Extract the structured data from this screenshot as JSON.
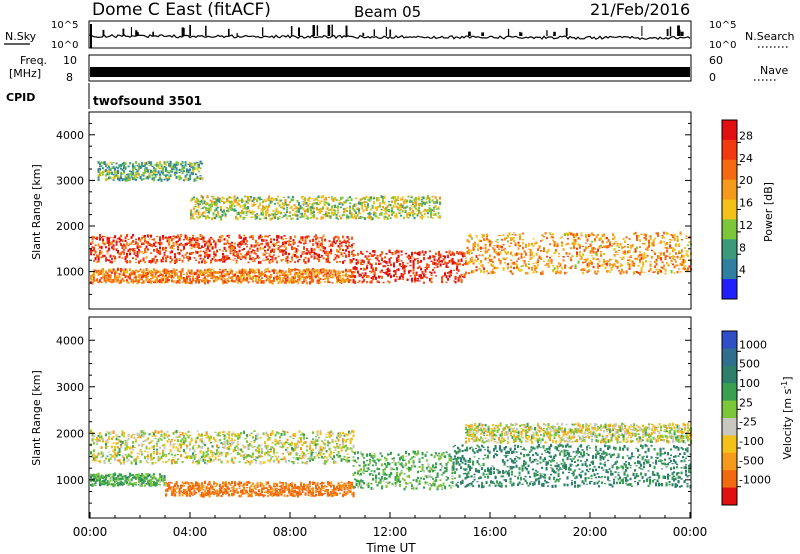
{
  "header": {
    "station": "Dome C East (fitACF)",
    "beam": "Beam 05",
    "date": "21/Feb/2016"
  },
  "top_panels": {
    "nsky_label": "N.Sky",
    "nsearch_label": "N.Search",
    "nsky_ticks": [
      "10^5",
      "10^0"
    ],
    "freq_label_line1": "Freq.",
    "freq_label_line2": "[MHz]",
    "freq_ticks": [
      "10",
      "8"
    ],
    "nave_label": "Nave",
    "nave_ticks": [
      "60",
      "0"
    ],
    "cpid_label": "CPID",
    "cpid_value": "twofsound 3501"
  },
  "colors": {
    "power_scale": [
      "#1f1fff",
      "#2e7fa0",
      "#3a9a7a",
      "#7cc63a",
      "#f2c21a",
      "#f59a1a",
      "#f56a10",
      "#f23a10",
      "#e01010"
    ],
    "velocity_scale": [
      "#2e4fc8",
      "#2f6e8c",
      "#2e7f6a",
      "#39a050",
      "#7cc63a",
      "#c8c8c0",
      "#f2c21a",
      "#f59a1a",
      "#f26a10",
      "#e01010"
    ]
  },
  "chart_data": [
    {
      "type": "heatmap",
      "title": "Power",
      "ylabel": "Slant Range [km]",
      "ylim": [
        180,
        4500
      ],
      "yticks": [
        "1000",
        "2000",
        "3000",
        "4000"
      ],
      "colorbar_label": "Power [dB]",
      "colorbar_ticks": [
        "4",
        "8",
        "12",
        "16",
        "20",
        "24",
        "28"
      ],
      "colorbar_range": [
        0,
        32
      ],
      "x_hours": [
        0,
        24
      ],
      "features": [
        {
          "t_start": 0.0,
          "t_end": 10.5,
          "range_center": 1500,
          "range_width": 600,
          "level": 26
        },
        {
          "t_start": 0.0,
          "t_end": 10.5,
          "range_center": 900,
          "range_width": 300,
          "level": 22
        },
        {
          "t_start": 10.5,
          "t_end": 15.0,
          "range_center": 1100,
          "range_width": 700,
          "level": 28
        },
        {
          "t_start": 15.0,
          "t_end": 24.0,
          "range_center": 1400,
          "range_width": 900,
          "level": 20
        },
        {
          "t_start": 0.3,
          "t_end": 4.5,
          "range_center": 3200,
          "range_width": 400,
          "level": 10
        },
        {
          "t_start": 4.0,
          "t_end": 14.0,
          "range_center": 2400,
          "range_width": 500,
          "level": 14
        }
      ]
    },
    {
      "type": "heatmap",
      "title": "Velocity",
      "ylabel": "Slant Range [km]",
      "xlabel": "Time UT",
      "ylim": [
        180,
        4500
      ],
      "yticks": [
        "1000",
        "2000",
        "3000",
        "4000"
      ],
      "colorbar_label": "Velocity [m s",
      "colorbar_label_sup": "-1",
      "colorbar_label_end": "]",
      "colorbar_ticks": [
        "1000",
        "500",
        "100",
        "25",
        "-25",
        "-100",
        "-500",
        "-1000"
      ],
      "x_tick_labels": [
        "00:00",
        "04:00",
        "08:00",
        "12:00",
        "16:00",
        "20:00",
        "00:00"
      ],
      "x_hours": [
        0,
        24
      ],
      "features": [
        {
          "t_start": 0.0,
          "t_end": 10.5,
          "range_center": 1700,
          "range_width": 700,
          "velocity": 0
        },
        {
          "t_start": 0.0,
          "t_end": 3.0,
          "range_center": 1000,
          "range_width": 250,
          "velocity": 150
        },
        {
          "t_start": 3.0,
          "t_end": 10.5,
          "range_center": 800,
          "range_width": 300,
          "velocity": -300
        },
        {
          "t_start": 10.5,
          "t_end": 14.5,
          "range_center": 1200,
          "range_width": 800,
          "velocity": 120
        },
        {
          "t_start": 14.5,
          "t_end": 24.0,
          "range_center": 1300,
          "range_width": 900,
          "velocity": 300
        },
        {
          "t_start": 15.0,
          "t_end": 24.0,
          "range_center": 2000,
          "range_width": 400,
          "velocity": 0
        }
      ]
    }
  ]
}
